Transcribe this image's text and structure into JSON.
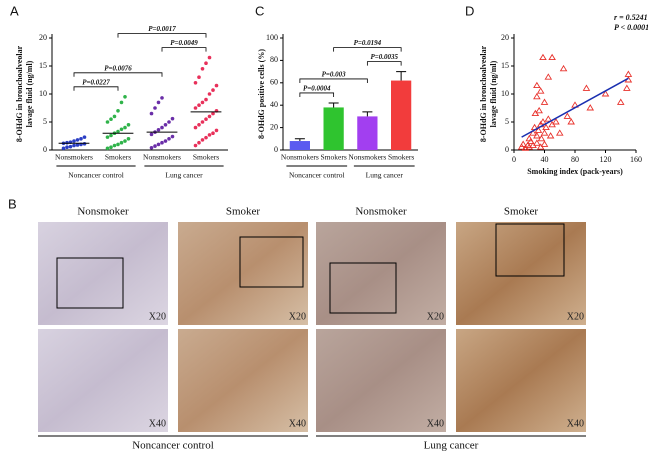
{
  "chart_data": [
    {
      "type": "dotplot",
      "panel": "A",
      "ylabel": [
        "8-OHdG in bronchoalveolar",
        "lavage fluid (ng/ml)"
      ],
      "categories": [
        "Nonsmokers",
        "Smokers",
        "Nonsmokers",
        "Smokers"
      ],
      "group_labels": [
        "Noncancer control",
        "Lung cancer"
      ],
      "colors": [
        "#2b3fc4",
        "#2fb34a",
        "#6a2ea8",
        "#e8305a"
      ],
      "points": [
        [
          0.3,
          0.5,
          0.6,
          0.8,
          0.9,
          1.0,
          1.1,
          1.2,
          1.3,
          1.4,
          1.6,
          1.8,
          2.0,
          2.3
        ],
        [
          0.3,
          0.5,
          0.8,
          1.0,
          1.3,
          1.6,
          2.0,
          2.3,
          2.6,
          3.0,
          3.3,
          3.7,
          4.0,
          4.5,
          5.0,
          5.5,
          6.0,
          7.0,
          8.5,
          9.5
        ],
        [
          0.4,
          0.7,
          1.0,
          1.3,
          1.6,
          2.0,
          2.4,
          2.8,
          3.2,
          3.6,
          4.0,
          4.5,
          5.0,
          5.6,
          6.5,
          7.5,
          8.5,
          9.3
        ],
        [
          0.8,
          1.3,
          1.8,
          2.2,
          2.7,
          3.0,
          3.5,
          4.0,
          4.5,
          5.0,
          5.5,
          6.0,
          6.5,
          7.0,
          7.5,
          8.0,
          8.5,
          9.0,
          10.0,
          10.7,
          11.5,
          12.0,
          13.0,
          14.5,
          15.5,
          16.5
        ]
      ],
      "medians": [
        1.2,
        3.0,
        3.2,
        6.8
      ],
      "ylim": [
        0,
        20
      ],
      "yticks": [
        0,
        5,
        10,
        15,
        20
      ],
      "comparisons": [
        {
          "from": 0,
          "to": 1,
          "label": "P=0.0227"
        },
        {
          "from": 0,
          "to": 2,
          "label": "P=0.0076"
        },
        {
          "from": 2,
          "to": 3,
          "label": "P=0.0049"
        },
        {
          "from": 1,
          "to": 3,
          "label": "P=0.0017"
        }
      ]
    },
    {
      "type": "bar",
      "panel": "C",
      "ylabel": [
        "8-OHdG positive cells (%)"
      ],
      "categories": [
        "Nonsmokers",
        "Smokers",
        "Nonsmokers",
        "Smokers"
      ],
      "group_labels": [
        "Noncancer control",
        "Lung cancer"
      ],
      "colors": [
        "#5b5bf0",
        "#2fc42f",
        "#a23ff0",
        "#f23c3c"
      ],
      "values": [
        8,
        38,
        30,
        62
      ],
      "errors": [
        2,
        4,
        4,
        8
      ],
      "ylim": [
        0,
        100
      ],
      "yticks": [
        0,
        20,
        40,
        60,
        80,
        100
      ],
      "comparisons": [
        {
          "from": 0,
          "to": 1,
          "label": "P=0.0004"
        },
        {
          "from": 0,
          "to": 2,
          "label": "P=0.003"
        },
        {
          "from": 2,
          "to": 3,
          "label": "P=0.0035"
        },
        {
          "from": 1,
          "to": 3,
          "label": "P=0.0194"
        }
      ]
    },
    {
      "type": "scatter",
      "panel": "D",
      "ylabel": [
        "8-OHdG in bronchoalveolar",
        "lavage fluid (ng/ml)"
      ],
      "xlabel": "Smoking index (pack-years)",
      "color": "#e8302a",
      "line_color": "#1a2fb0",
      "x": [
        10,
        12,
        15,
        18,
        20,
        20,
        22,
        25,
        25,
        27,
        28,
        30,
        30,
        30,
        30,
        32,
        33,
        35,
        35,
        35,
        36,
        38,
        38,
        40,
        40,
        40,
        42,
        45,
        45,
        48,
        50,
        50,
        55,
        60,
        65,
        70,
        75,
        80,
        95,
        100,
        120,
        140,
        148,
        150,
        150
      ],
      "y": [
        0.5,
        1.0,
        0.3,
        0.8,
        0.5,
        2.0,
        1.5,
        3.0,
        0.8,
        4.0,
        6.5,
        1.2,
        2.5,
        9.5,
        11.5,
        3.5,
        7.0,
        4.5,
        0.5,
        10.5,
        2.0,
        5.0,
        16.5,
        3.0,
        8.5,
        1.0,
        4.0,
        5.5,
        13.0,
        2.5,
        16.5,
        4.5,
        5.0,
        3.0,
        14.5,
        6.0,
        5.0,
        8.0,
        11.0,
        7.5,
        10.0,
        8.5,
        11.0,
        13.5,
        12.5
      ],
      "trend_line": {
        "x": [
          10,
          150
        ],
        "y": [
          2.3,
          12.8
        ]
      },
      "annotations": [
        "r = 0.5241",
        "P < 0.0001"
      ],
      "xlim": [
        0,
        160
      ],
      "xticks": [
        0,
        40,
        80,
        120,
        160
      ],
      "ylim": [
        0,
        20
      ],
      "yticks": [
        0,
        5,
        10,
        15,
        20
      ]
    }
  ],
  "panel_b": {
    "label": "B",
    "columns": [
      "Nonsmoker",
      "Smoker",
      "Nonsmoker",
      "Smoker"
    ],
    "magnifications": [
      "X20",
      "X40"
    ],
    "groups": [
      "Noncancer control",
      "Lung cancer"
    ]
  }
}
